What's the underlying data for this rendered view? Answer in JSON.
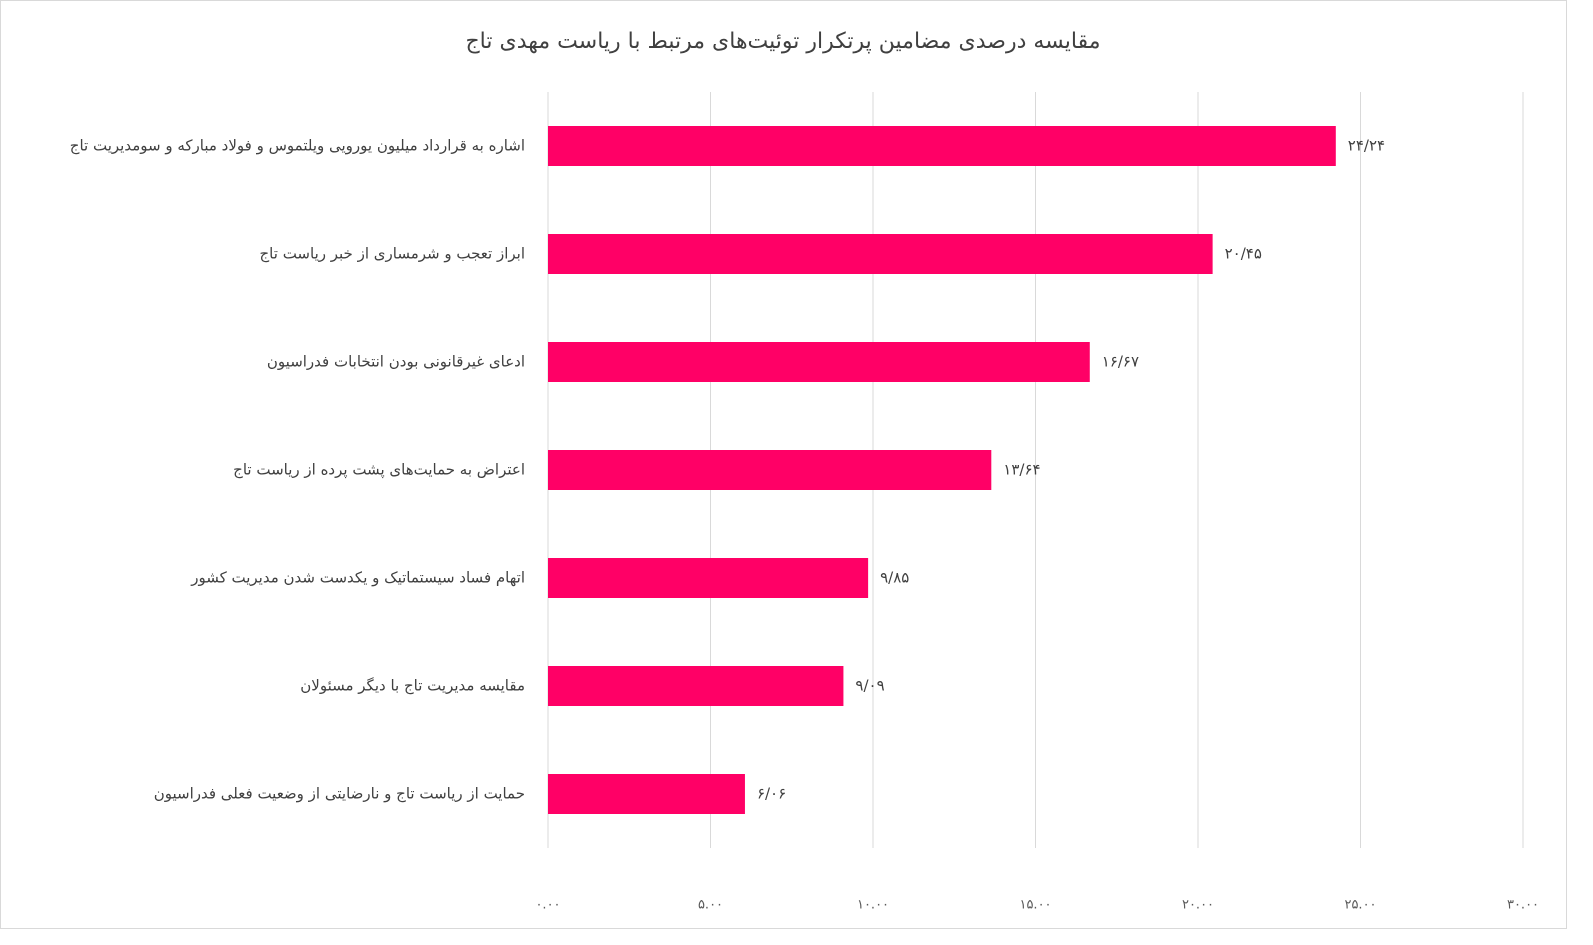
{
  "chart_data": {
    "type": "bar",
    "orientation": "horizontal",
    "title": "مقایسه درصدی مضامین پرتکرار توئیت‌های مرتبط با ریاست مهدی تاج",
    "categories": [
      "اشاره به قرارداد میلیون یورویی ویلتموس و فولاد مبارکه و سومدیریت تاج",
      "ابراز تعجب و شرمساری از خبر ریاست تاج",
      "ادعای غیرقانونی بودن انتخابات فدراسیون",
      "اعتراض به حمایت‌های پشت پرده از ریاست تاج",
      "اتهام فساد سیستماتیک و یکدست شدن مدیریت کشور",
      "مقایسه مدیریت تاج با دیگر مسئولان",
      "حمایت از ریاست تاج و نارضایتی از وضعیت فعلی فدراسیون"
    ],
    "values": [
      24.24,
      20.45,
      16.67,
      13.64,
      9.85,
      9.09,
      6.06
    ],
    "value_labels": [
      "۲۴/۲۴",
      "۲۰/۴۵",
      "۱۶/۶۷",
      "۱۳/۶۴",
      "۹/۸۵",
      "۹/۰۹",
      "۶/۰۶"
    ],
    "color": "#ff0066",
    "xlim": [
      0,
      30
    ],
    "xticks": [
      {
        "value": 0,
        "label": "۰.۰۰"
      },
      {
        "value": 5,
        "label": "۵.۰۰"
      },
      {
        "value": 10,
        "label": "۱۰.۰۰"
      },
      {
        "value": 15,
        "label": "۱۵.۰۰"
      },
      {
        "value": 20,
        "label": "۲۰.۰۰"
      },
      {
        "value": 25,
        "label": "۲۵.۰۰"
      },
      {
        "value": 30,
        "label": "۳۰.۰۰"
      }
    ],
    "grid": true
  }
}
